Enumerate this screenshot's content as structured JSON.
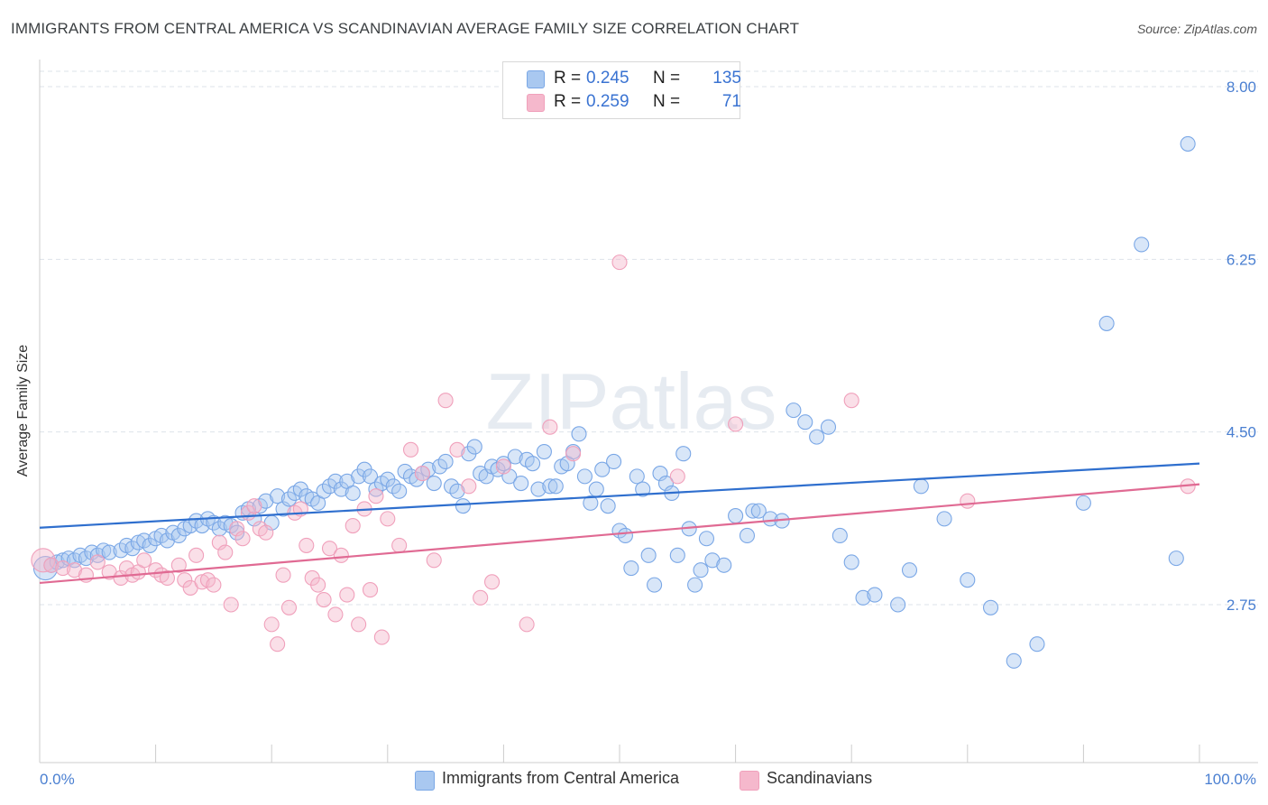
{
  "title": "IMMIGRANTS FROM CENTRAL AMERICA VS SCANDINAVIAN AVERAGE FAMILY SIZE CORRELATION CHART",
  "source": "Source: ZipAtlas.com",
  "watermark": "ZIPatlas",
  "legend": {
    "rows": [
      {
        "r_label": "R =",
        "r_value": "0.245",
        "n_label": "N =",
        "n_value": "135",
        "color": "#a9c8f0"
      },
      {
        "r_label": "R =",
        "r_value": "0.259",
        "n_label": "N =",
        "n_value": "71",
        "color": "#f5b8cc"
      }
    ]
  },
  "bottom_legend": [
    "Immigrants from Central America",
    "Scandinavians"
  ],
  "chart_data": {
    "type": "scatter",
    "title": "IMMIGRANTS FROM CENTRAL AMERICA VS SCANDINAVIAN AVERAGE FAMILY SIZE CORRELATION CHART",
    "xlabel": "",
    "ylabel": "Average Family Size",
    "xlim": [
      0,
      100
    ],
    "ylim": [
      1.35,
      8.2
    ],
    "x_tick_labels": [
      "0.0%",
      "100.0%"
    ],
    "y_ticks": [
      2.75,
      4.5,
      6.25,
      8.0
    ],
    "y_tick_labels": [
      "2.75",
      "4.50",
      "6.25",
      "8.00"
    ],
    "grid": true,
    "legend_position": "top-center",
    "series": [
      {
        "name": "Immigrants from Central America",
        "color": "#7aa7e6",
        "fill": "#a9c8f0",
        "line_color": "#2f6fce",
        "trend": [
          [
            0,
            3.53
          ],
          [
            100,
            4.18
          ]
        ],
        "points": [
          [
            0.5,
            3.12
          ],
          [
            1,
            3.15
          ],
          [
            1.5,
            3.18
          ],
          [
            2,
            3.2
          ],
          [
            2.5,
            3.22
          ],
          [
            3,
            3.2
          ],
          [
            3.5,
            3.25
          ],
          [
            4,
            3.22
          ],
          [
            4.5,
            3.28
          ],
          [
            5,
            3.25
          ],
          [
            5.5,
            3.3
          ],
          [
            6,
            3.28
          ],
          [
            7,
            3.3
          ],
          [
            7.5,
            3.35
          ],
          [
            8,
            3.32
          ],
          [
            8.5,
            3.38
          ],
          [
            9,
            3.4
          ],
          [
            9.5,
            3.35
          ],
          [
            10,
            3.42
          ],
          [
            10.5,
            3.45
          ],
          [
            11,
            3.4
          ],
          [
            11.5,
            3.48
          ],
          [
            12,
            3.45
          ],
          [
            12.5,
            3.52
          ],
          [
            13,
            3.55
          ],
          [
            13.5,
            3.6
          ],
          [
            14,
            3.55
          ],
          [
            14.5,
            3.62
          ],
          [
            15,
            3.58
          ],
          [
            15.5,
            3.52
          ],
          [
            16,
            3.58
          ],
          [
            16.5,
            3.55
          ],
          [
            17,
            3.48
          ],
          [
            17.5,
            3.68
          ],
          [
            18,
            3.72
          ],
          [
            18.5,
            3.62
          ],
          [
            19,
            3.75
          ],
          [
            19.5,
            3.8
          ],
          [
            20,
            3.58
          ],
          [
            20.5,
            3.85
          ],
          [
            21,
            3.72
          ],
          [
            21.5,
            3.82
          ],
          [
            22,
            3.88
          ],
          [
            22.5,
            3.92
          ],
          [
            23,
            3.85
          ],
          [
            23.5,
            3.82
          ],
          [
            24,
            3.78
          ],
          [
            24.5,
            3.9
          ],
          [
            25,
            3.95
          ],
          [
            25.5,
            4.0
          ],
          [
            26,
            3.92
          ],
          [
            26.5,
            4.0
          ],
          [
            27,
            3.88
          ],
          [
            27.5,
            4.05
          ],
          [
            28,
            4.12
          ],
          [
            28.5,
            4.05
          ],
          [
            29,
            3.92
          ],
          [
            29.5,
            3.98
          ],
          [
            30,
            4.02
          ],
          [
            30.5,
            3.95
          ],
          [
            31,
            3.9
          ],
          [
            31.5,
            4.1
          ],
          [
            32,
            4.05
          ],
          [
            32.5,
            4.02
          ],
          [
            33,
            4.08
          ],
          [
            33.5,
            4.12
          ],
          [
            34,
            3.98
          ],
          [
            34.5,
            4.15
          ],
          [
            35,
            4.2
          ],
          [
            35.5,
            3.95
          ],
          [
            36,
            3.9
          ],
          [
            36.5,
            3.75
          ],
          [
            37,
            4.28
          ],
          [
            37.5,
            4.35
          ],
          [
            38,
            4.08
          ],
          [
            38.5,
            4.05
          ],
          [
            39,
            4.15
          ],
          [
            39.5,
            4.12
          ],
          [
            40,
            4.18
          ],
          [
            40.5,
            4.05
          ],
          [
            41,
            4.25
          ],
          [
            41.5,
            3.98
          ],
          [
            42,
            4.22
          ],
          [
            42.5,
            4.18
          ],
          [
            43,
            3.92
          ],
          [
            43.5,
            4.3
          ],
          [
            44,
            3.95
          ],
          [
            44.5,
            3.95
          ],
          [
            45,
            4.15
          ],
          [
            45.5,
            4.18
          ],
          [
            46,
            4.3
          ],
          [
            46.5,
            4.48
          ],
          [
            47,
            4.05
          ],
          [
            47.5,
            3.78
          ],
          [
            48,
            3.92
          ],
          [
            48.5,
            4.12
          ],
          [
            49,
            3.75
          ],
          [
            49.5,
            4.2
          ],
          [
            50,
            3.5
          ],
          [
            50.5,
            3.45
          ],
          [
            51,
            3.12
          ],
          [
            51.5,
            4.05
          ],
          [
            52,
            3.92
          ],
          [
            52.5,
            3.25
          ],
          [
            53,
            2.95
          ],
          [
            53.5,
            4.08
          ],
          [
            54,
            3.98
          ],
          [
            54.5,
            3.88
          ],
          [
            55,
            3.25
          ],
          [
            55.5,
            4.28
          ],
          [
            56,
            3.52
          ],
          [
            56.5,
            2.95
          ],
          [
            57,
            3.1
          ],
          [
            57.5,
            3.42
          ],
          [
            58,
            3.2
          ],
          [
            59,
            3.15
          ],
          [
            60,
            3.65
          ],
          [
            61,
            3.45
          ],
          [
            61.5,
            3.7
          ],
          [
            62,
            3.7
          ],
          [
            63,
            3.62
          ],
          [
            64,
            3.6
          ],
          [
            65,
            4.72
          ],
          [
            66,
            4.6
          ],
          [
            67,
            4.45
          ],
          [
            68,
            4.55
          ],
          [
            69,
            3.45
          ],
          [
            70,
            3.18
          ],
          [
            71,
            2.82
          ],
          [
            72,
            2.85
          ],
          [
            74,
            2.75
          ],
          [
            75,
            3.1
          ],
          [
            76,
            3.95
          ],
          [
            78,
            3.62
          ],
          [
            80,
            3.0
          ],
          [
            82,
            2.72
          ],
          [
            84,
            2.18
          ],
          [
            86,
            2.35
          ],
          [
            90,
            3.78
          ],
          [
            92,
            5.6
          ],
          [
            95,
            6.4
          ],
          [
            98,
            3.22
          ],
          [
            99,
            7.42
          ]
        ]
      },
      {
        "name": "Scandinavians",
        "color": "#f0a0bb",
        "fill": "#f5b8cc",
        "line_color": "#e06a93",
        "trend": [
          [
            0,
            2.97
          ],
          [
            100,
            3.97
          ]
        ],
        "points": [
          [
            0.3,
            3.2
          ],
          [
            1,
            3.15
          ],
          [
            2,
            3.12
          ],
          [
            3,
            3.1
          ],
          [
            4,
            3.05
          ],
          [
            5,
            3.18
          ],
          [
            6,
            3.08
          ],
          [
            7,
            3.02
          ],
          [
            7.5,
            3.12
          ],
          [
            8,
            3.05
          ],
          [
            8.5,
            3.08
          ],
          [
            9,
            3.2
          ],
          [
            10,
            3.1
          ],
          [
            10.5,
            3.05
          ],
          [
            11,
            3.02
          ],
          [
            12,
            3.15
          ],
          [
            12.5,
            3.0
          ],
          [
            13,
            2.92
          ],
          [
            13.5,
            3.25
          ],
          [
            14,
            2.98
          ],
          [
            14.5,
            3.0
          ],
          [
            15,
            2.95
          ],
          [
            15.5,
            3.38
          ],
          [
            16,
            3.28
          ],
          [
            16.5,
            2.75
          ],
          [
            17,
            3.52
          ],
          [
            17.5,
            3.42
          ],
          [
            18,
            3.68
          ],
          [
            18.5,
            3.75
          ],
          [
            19,
            3.52
          ],
          [
            19.5,
            3.48
          ],
          [
            20,
            2.55
          ],
          [
            20.5,
            2.35
          ],
          [
            21,
            3.05
          ],
          [
            21.5,
            2.72
          ],
          [
            22,
            3.68
          ],
          [
            22.5,
            3.72
          ],
          [
            23,
            3.35
          ],
          [
            23.5,
            3.02
          ],
          [
            24,
            2.95
          ],
          [
            24.5,
            2.8
          ],
          [
            25,
            3.32
          ],
          [
            25.5,
            2.65
          ],
          [
            26,
            3.25
          ],
          [
            26.5,
            2.85
          ],
          [
            27,
            3.55
          ],
          [
            27.5,
            2.55
          ],
          [
            28,
            3.72
          ],
          [
            28.5,
            2.9
          ],
          [
            29,
            3.85
          ],
          [
            29.5,
            2.42
          ],
          [
            30,
            3.62
          ],
          [
            31,
            3.35
          ],
          [
            32,
            4.32
          ],
          [
            33,
            4.08
          ],
          [
            34,
            3.2
          ],
          [
            35,
            4.82
          ],
          [
            36,
            4.32
          ],
          [
            37,
            3.95
          ],
          [
            38,
            2.82
          ],
          [
            39,
            2.98
          ],
          [
            40,
            4.15
          ],
          [
            42,
            2.55
          ],
          [
            44,
            4.55
          ],
          [
            46,
            4.28
          ],
          [
            50,
            6.22
          ],
          [
            55,
            4.05
          ],
          [
            60,
            4.58
          ],
          [
            70,
            4.82
          ],
          [
            80,
            3.8
          ],
          [
            99,
            3.95
          ]
        ]
      }
    ]
  }
}
